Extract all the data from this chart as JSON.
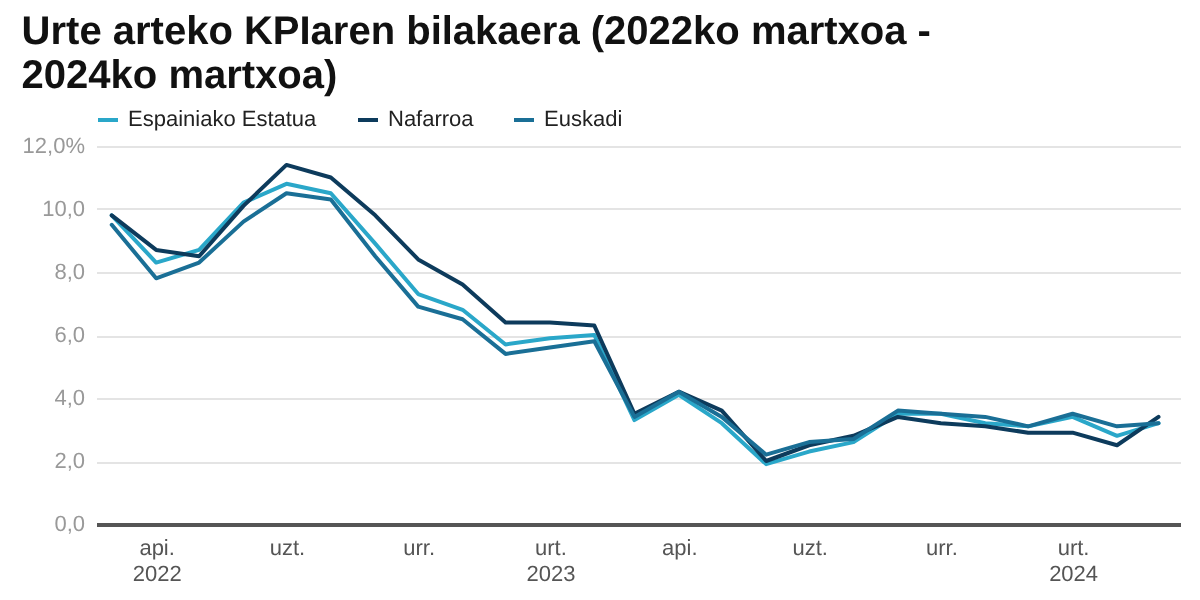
{
  "chart_data": {
    "type": "line",
    "title": "Urte arteko KPIaren bilakaera (2022ko martxoa - 2024ko martxoa)",
    "x": [
      "2022-03",
      "2022-04",
      "2022-05",
      "2022-06",
      "2022-07",
      "2022-08",
      "2022-09",
      "2022-10",
      "2022-11",
      "2022-12",
      "2023-01",
      "2023-02",
      "2023-03",
      "2023-04",
      "2023-05",
      "2023-06",
      "2023-07",
      "2023-08",
      "2023-09",
      "2023-10",
      "2023-11",
      "2023-12",
      "2024-01",
      "2024-02",
      "2024-03"
    ],
    "series": [
      {
        "name": "Espainiako Estatua",
        "color": "#2aa7c9",
        "values": [
          9.8,
          8.3,
          8.7,
          10.2,
          10.8,
          10.5,
          8.9,
          7.3,
          6.8,
          5.7,
          5.9,
          6.0,
          3.3,
          4.1,
          3.2,
          1.9,
          2.3,
          2.6,
          3.5,
          3.5,
          3.2,
          3.1,
          3.4,
          2.8,
          3.2
        ]
      },
      {
        "name": "Nafarroa",
        "color": "#0d3b5c",
        "values": [
          9.8,
          8.7,
          8.5,
          10.1,
          11.4,
          11.0,
          9.8,
          8.4,
          7.6,
          6.4,
          6.4,
          6.3,
          3.5,
          4.2,
          3.6,
          2.0,
          2.5,
          2.8,
          3.4,
          3.2,
          3.1,
          2.9,
          2.9,
          2.5,
          3.4
        ]
      },
      {
        "name": "Euskadi",
        "color": "#1a6f96",
        "values": [
          9.5,
          7.8,
          8.3,
          9.6,
          10.5,
          10.3,
          8.5,
          6.9,
          6.5,
          5.4,
          5.6,
          5.8,
          3.4,
          4.2,
          3.4,
          2.2,
          2.6,
          2.7,
          3.6,
          3.5,
          3.4,
          3.1,
          3.5,
          3.1,
          3.2
        ]
      }
    ],
    "xlim": [
      "2022-02-18",
      "2024-03-16"
    ],
    "xticks": [
      {
        "value": "2022-04",
        "label": "api.\n2022"
      },
      {
        "value": "2022-07",
        "label": "uzt."
      },
      {
        "value": "2022-10",
        "label": "urr."
      },
      {
        "value": "2023-01",
        "label": "urt.\n2023"
      },
      {
        "value": "2023-04",
        "label": "api."
      },
      {
        "value": "2023-07",
        "label": "uzt."
      },
      {
        "value": "2023-10",
        "label": "urr."
      },
      {
        "value": "2024-01",
        "label": "urt.\n2024"
      }
    ],
    "ylim": [
      0,
      12
    ],
    "yticks": [
      {
        "value": 0,
        "label": "0,0"
      },
      {
        "value": 2,
        "label": "2,0"
      },
      {
        "value": 4,
        "label": "4,0"
      },
      {
        "value": 6,
        "label": "6,0"
      },
      {
        "value": 8,
        "label": "8,0"
      },
      {
        "value": 10,
        "label": "10,0"
      },
      {
        "value": 12,
        "label": "12,0%"
      }
    ],
    "grid": "y",
    "legend": "top left",
    "line_style": "solid",
    "marker": "none"
  }
}
